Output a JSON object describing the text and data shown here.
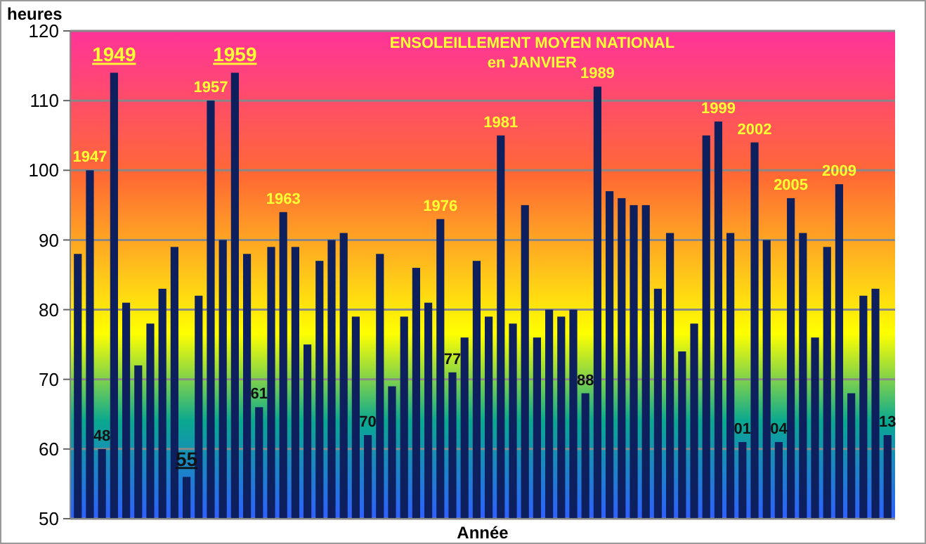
{
  "chart_data": {
    "type": "bar",
    "title": "ENSOLEILLEMENT MOYEN NATIONAL",
    "subtitle": "en JANVIER",
    "xlabel": "Année",
    "ylabel": "heures",
    "categories": [
      null,
      "1947",
      "48",
      "1949",
      null,
      null,
      null,
      null,
      null,
      "55",
      null,
      "1957",
      null,
      "1959",
      null,
      "61",
      null,
      "1963",
      null,
      null,
      null,
      null,
      null,
      null,
      "70",
      null,
      null,
      null,
      null,
      null,
      "1976",
      "77",
      null,
      null,
      null,
      "1981",
      null,
      null,
      null,
      null,
      null,
      null,
      "88",
      "1989",
      null,
      null,
      null,
      null,
      null,
      null,
      null,
      null,
      null,
      "1999",
      null,
      "01",
      "2002",
      null,
      "04",
      "2005",
      null,
      null,
      null,
      "2009",
      null,
      null,
      null,
      "13"
    ],
    "values": [
      88,
      100,
      60,
      114,
      81,
      72,
      78,
      83,
      89,
      56,
      82,
      110,
      90,
      114,
      88,
      66,
      89,
      94,
      89,
      75,
      87,
      90,
      91,
      79,
      62,
      88,
      69,
      79,
      86,
      81,
      93,
      71,
      76,
      87,
      79,
      105,
      78,
      95,
      76,
      80,
      79,
      80,
      68,
      112,
      97,
      96,
      95,
      95,
      83,
      91,
      74,
      78,
      105,
      107,
      91,
      61,
      104,
      90,
      61,
      96,
      91,
      76,
      89,
      98,
      68,
      82,
      83,
      62
    ],
    "color": "#0d1f5c",
    "ylim": [
      50,
      120
    ],
    "yticks": [
      50,
      60,
      70,
      80,
      90,
      100,
      110,
      120
    ],
    "grid": "y"
  }
}
